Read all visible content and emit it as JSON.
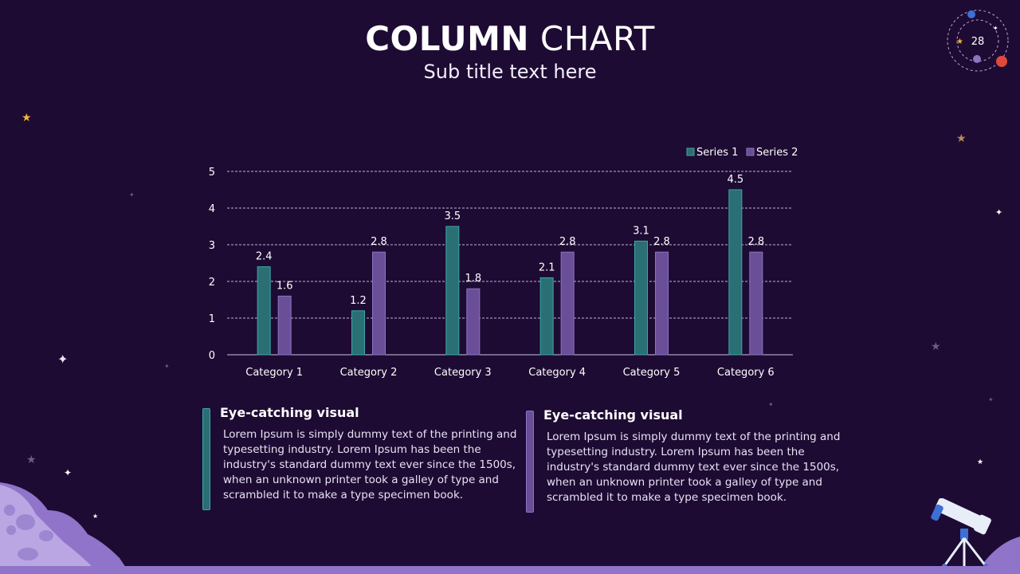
{
  "slide": {
    "title_bold": "COLUMN",
    "title_light": "CHART",
    "subtitle": "Sub title text here",
    "page_number": "28"
  },
  "chart_data": {
    "type": "bar",
    "categories": [
      "Category 1",
      "Category 2",
      "Category 3",
      "Category 4",
      "Category 5",
      "Category 6"
    ],
    "series": [
      {
        "name": "Series 1",
        "values": [
          2.4,
          1.2,
          3.5,
          2.1,
          3.1,
          4.5
        ],
        "color": "#2a6f73",
        "stroke": "#3fa6a6"
      },
      {
        "name": "Series 2",
        "values": [
          1.6,
          2.8,
          1.8,
          2.8,
          2.8,
          2.8
        ],
        "color": "#6a4e97",
        "stroke": "#8c74c0"
      }
    ],
    "title": "",
    "xlabel": "",
    "ylabel": "",
    "ylim": [
      0,
      5
    ],
    "yticks": [
      "0",
      "1",
      "2",
      "3",
      "4",
      "5"
    ],
    "data_labels": [
      "2.4",
      "1.2",
      "3.5",
      "2.1",
      "3.1",
      "4.5",
      "1.6",
      "2.8",
      "1.8",
      "2.8",
      "2.8",
      "2.8"
    ],
    "legend_position": "top-right",
    "grid": true
  },
  "blocks": [
    {
      "heading": "Eye-catching visual",
      "body": "Lorem Ipsum is simply dummy text of the printing and typesetting industry. Lorem Ipsum has been the industry's standard dummy text ever since the 1500s, when an unknown printer took a galley of type and scrambled it to make a type specimen book.",
      "accent": "#2a6f73"
    },
    {
      "heading": "Eye-catching visual",
      "body": "Lorem Ipsum is simply dummy text of the printing and typesetting industry. Lorem Ipsum has been the industry's standard dummy text ever since the 1500s, when an unknown printer took a galley of type and scrambled it to make a type specimen book.",
      "accent": "#6a4e97"
    }
  ],
  "icons": [
    "orbit-badge-icon",
    "telescope-icon",
    "moon-surface-icon",
    "star-icon"
  ]
}
